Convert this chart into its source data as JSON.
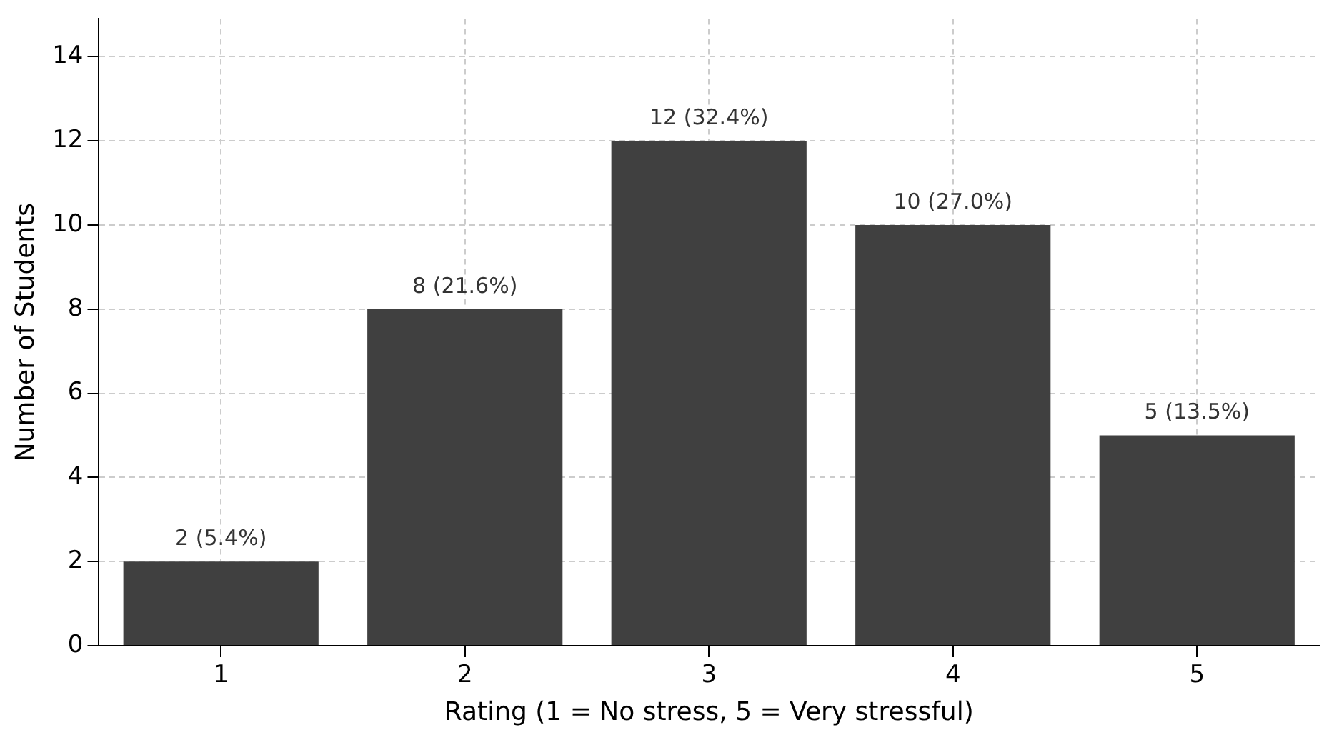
{
  "chart_data": {
    "type": "bar",
    "xlabel": "Rating (1 = No stress, 5 = Very stressful)",
    "ylabel": "Number of Students",
    "categories": [
      "1",
      "2",
      "3",
      "4",
      "5"
    ],
    "values": [
      2,
      8,
      12,
      10,
      5
    ],
    "color": "#404040",
    "value_labels": [
      "2 (5.4%)",
      "8 (21.6%)",
      "12 (32.4%)",
      "10 (27.0%)",
      "5 (13.5%)"
    ],
    "ylim": [
      0,
      14.9
    ],
    "yticks": [
      0,
      2,
      4,
      6,
      8,
      10,
      12,
      14
    ],
    "grid": true
  }
}
